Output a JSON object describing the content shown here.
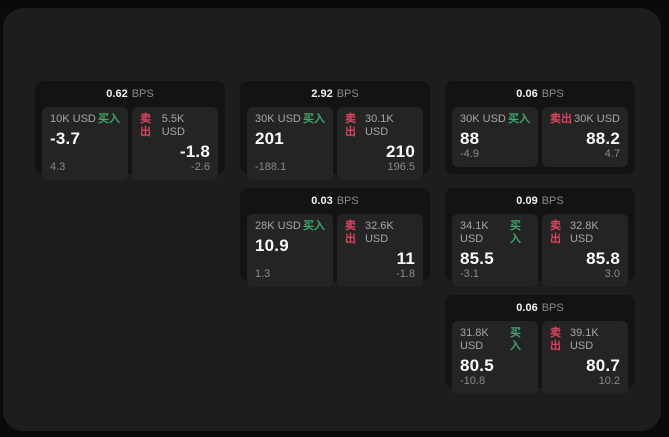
{
  "labels": {
    "bps_unit": "BPS",
    "buy": "买入",
    "sell": "卖出"
  },
  "colors": {
    "page_bg": "#0a0a0a",
    "frame_bg": "#1d1d1d",
    "card_bg": "#131313",
    "panel_bg": "#242424",
    "buy_green": "#3fa56b",
    "sell_red": "#d9455f",
    "price_text": "#fafafa",
    "muted_text": "#8a8a8a"
  },
  "cards": [
    {
      "bps": "0.62",
      "buy": {
        "amount": "10K USD",
        "price": "-3.7",
        "sub": "4.3"
      },
      "sell": {
        "amount": "5.5K USD",
        "price": "-1.8",
        "sub": "-2.6"
      }
    },
    {
      "bps": "2.92",
      "buy": {
        "amount": "30K USD",
        "price": "201",
        "sub": "-188.1"
      },
      "sell": {
        "amount": "30.1K USD",
        "price": "210",
        "sub": "196.5"
      }
    },
    {
      "bps": "0.06",
      "buy": {
        "amount": "30K USD",
        "price": "88",
        "sub": "-4.9"
      },
      "sell": {
        "amount": "30K USD",
        "price": "88.2",
        "sub": "4.7"
      }
    },
    {
      "bps": "0.03",
      "buy": {
        "amount": "28K USD",
        "price": "10.9",
        "sub": "1.3"
      },
      "sell": {
        "amount": "32.6K USD",
        "price": "11",
        "sub": "-1.8"
      }
    },
    {
      "bps": "0.09",
      "buy": {
        "amount": "34.1K USD",
        "price": "85.5",
        "sub": "-3.1"
      },
      "sell": {
        "amount": "32.8K USD",
        "price": "85.8",
        "sub": "3.0"
      }
    },
    {
      "bps": "0.06",
      "buy": {
        "amount": "31.8K USD",
        "price": "80.5",
        "sub": "-10.8"
      },
      "sell": {
        "amount": "39.1K USD",
        "price": "80.7",
        "sub": "10.2"
      }
    }
  ]
}
